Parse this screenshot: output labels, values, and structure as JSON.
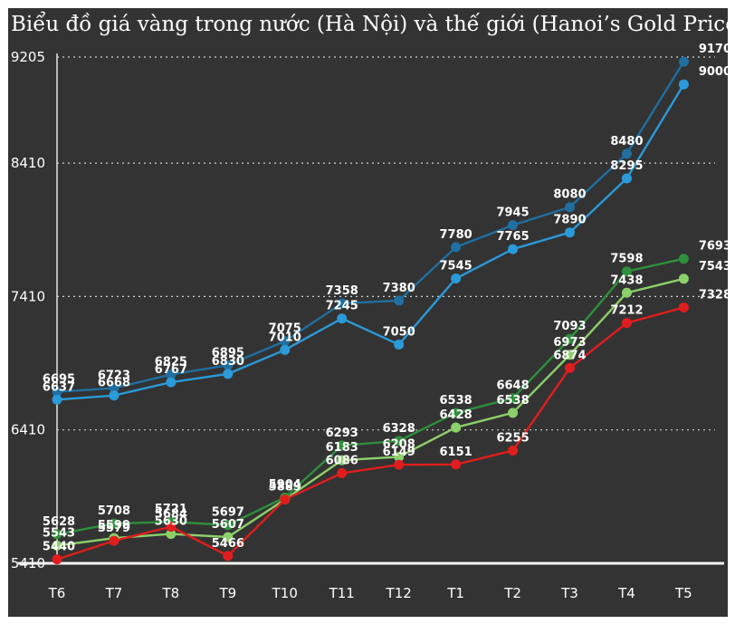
{
  "title": "Biểu đồ giá vàng trong nước (Hà Nội) và thế giới (Hanoi’s Gold Price)",
  "chart_data": {
    "type": "line",
    "title": "Biểu đồ giá vàng trong nước (Hà Nội) và thế giới (Hanoi’s Gold Price)",
    "xlabel": "",
    "ylabel": "",
    "categories": [
      "T6",
      "T7",
      "T8",
      "T9",
      "T10",
      "T11",
      "T12",
      "T1",
      "T2",
      "T3",
      "T4",
      "T5"
    ],
    "yticks": [
      5410,
      6410,
      7410,
      8410,
      9205
    ],
    "ylim": [
      5410,
      9205
    ],
    "grid": true,
    "series": [
      {
        "color": "#1f6fa0",
        "values": [
          6695,
          6723,
          6825,
          6895,
          7075,
          7358,
          7380,
          7780,
          7945,
          8080,
          8480,
          9170
        ],
        "labels": [
          "6695",
          "6723",
          "6825",
          "6895",
          "7075",
          "7358",
          "7380",
          "7780",
          "7945",
          "8080",
          "8480",
          "9170"
        ]
      },
      {
        "color": "#2a9ad8",
        "values": [
          6637,
          6668,
          6767,
          6830,
          7010,
          7245,
          7050,
          7545,
          7765,
          7890,
          8295,
          9000
        ],
        "labels": [
          "6637",
          "6668",
          "6767",
          "6830",
          "7010",
          "7245",
          "7050",
          "7545",
          "7765",
          "7890",
          "8295",
          "9000"
        ]
      },
      {
        "color": "#2f8f3c",
        "values": [
          5628,
          5708,
          5721,
          5697,
          5904,
          6293,
          6328,
          6538,
          6648,
          7093,
          7598,
          7693
        ],
        "labels": [
          "5628",
          "5708",
          "5721",
          "5697",
          "5904",
          "6293",
          "6328",
          "6538",
          "6648",
          "7093",
          "7598",
          "7693"
        ]
      },
      {
        "color": "#8cd06a",
        "values": [
          5543,
          5599,
          5630,
          5607,
          5889,
          6183,
          6208,
          6428,
          6538,
          6973,
          7438,
          7543
        ],
        "labels": [
          "5543",
          "5599",
          "5630",
          "5607",
          "5889",
          "6183",
          "6208",
          "6428",
          "6538",
          "6973",
          "7438",
          "7543"
        ]
      },
      {
        "color": "#e01d1d",
        "values": [
          5440,
          5579,
          5684,
          5466,
          5889,
          6086,
          6149,
          6151,
          6255,
          6874,
          7212,
          7328
        ],
        "labels": [
          "5440",
          "5579",
          "5684",
          "5466",
          "",
          "6086",
          "6149",
          "6151",
          "6255",
          "6874",
          "7212",
          "7328"
        ]
      }
    ]
  }
}
